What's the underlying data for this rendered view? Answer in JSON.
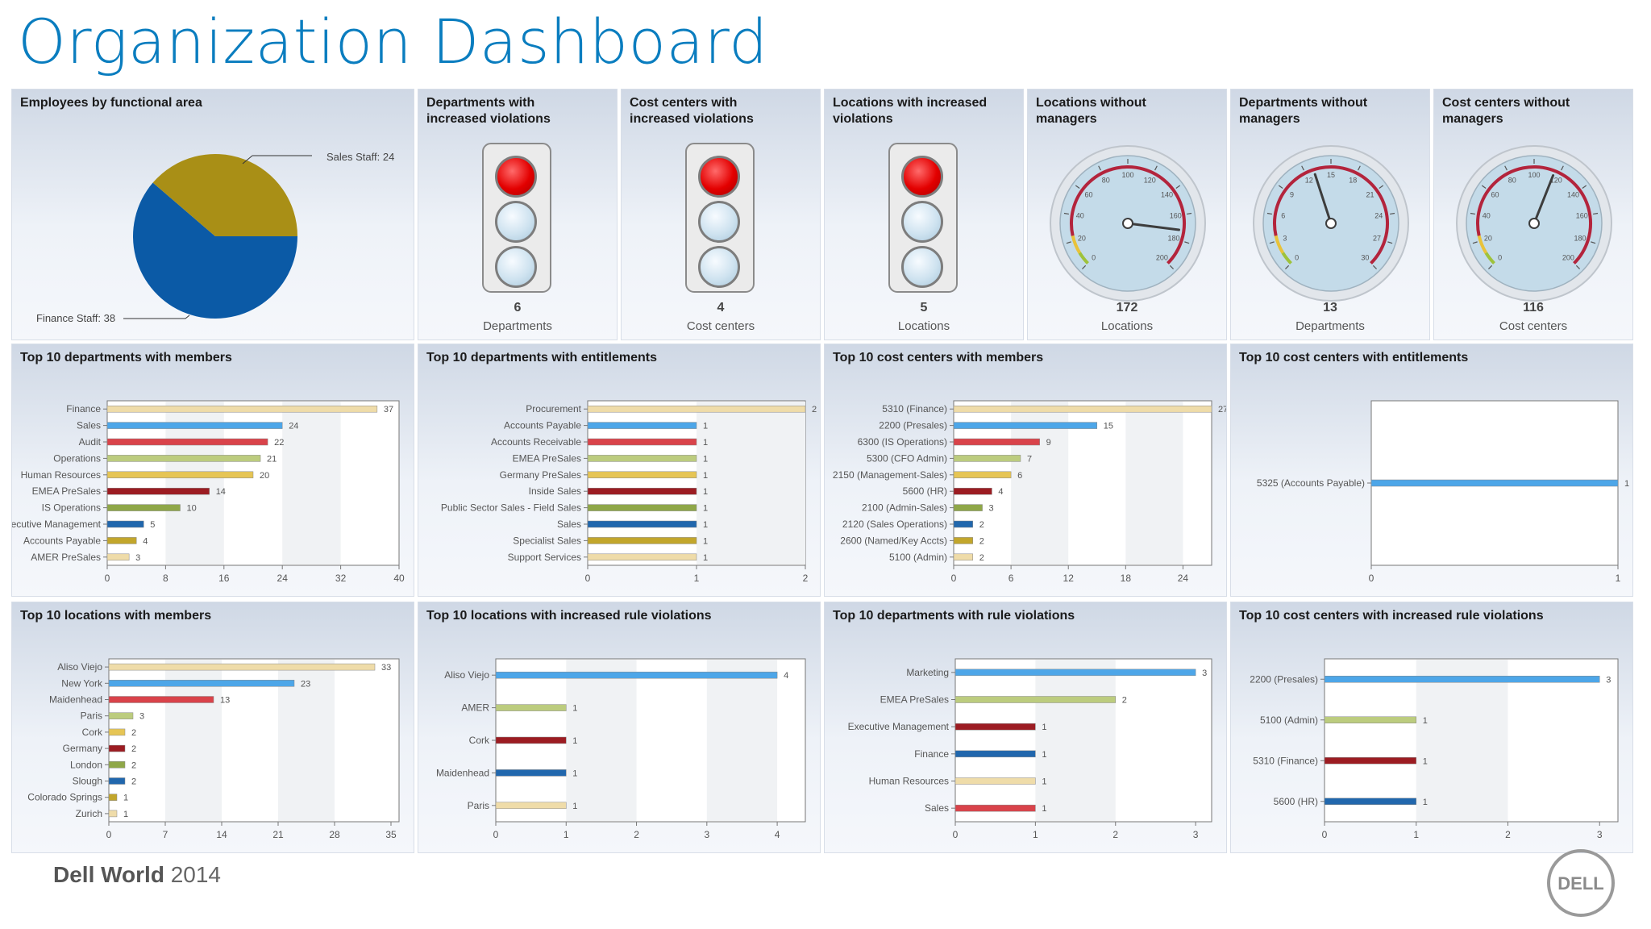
{
  "page": {
    "title": "Organization Dashboard"
  },
  "footer": {
    "brand": "Dell World",
    "year": "2014",
    "logo": "DELL"
  },
  "colors": {
    "accent": "#0a7dbf",
    "pie_finance": "#0b5aa6",
    "pie_sales": "#a98f16",
    "bar_palette": [
      "#efdca9",
      "#4da6e8",
      "#d9434a",
      "#bccc7e",
      "#e6c555",
      "#9c1c22",
      "#8fa748",
      "#2167ad",
      "#c2a62c"
    ]
  },
  "panels": {
    "employees": {
      "title": "Employees by functional area",
      "finance_label": "Finance Staff: 38",
      "sales_label": "Sales Staff: 24"
    },
    "dept_violations": {
      "title": "Departments with\nincreased violations",
      "value": "6",
      "unit": "Departments"
    },
    "cc_violations": {
      "title": "Cost centers with\nincreased violations",
      "value": "4",
      "unit": "Cost centers"
    },
    "loc_violations": {
      "title": "Locations with increased\nviolations",
      "value": "5",
      "unit": "Locations"
    },
    "loc_no_mgr": {
      "title": "Locations without\nmanagers",
      "value": "172",
      "unit": "Locations"
    },
    "dept_no_mgr": {
      "title": "Departments without\nmanagers",
      "value": "13",
      "unit": "Departments"
    },
    "cc_no_mgr": {
      "title": "Cost centers without\nmanagers",
      "value": "116",
      "unit": "Cost centers"
    },
    "top_dept_members": {
      "title": "Top 10 departments with members"
    },
    "top_dept_entitlements": {
      "title": "Top 10 departments with entitlements"
    },
    "top_cc_members": {
      "title": "Top 10 cost centers with members"
    },
    "top_cc_entitlements": {
      "title": "Top 10 cost centers with entitlements"
    },
    "top_loc_members": {
      "title": "Top 10 locations with members"
    },
    "top_loc_violations": {
      "title": "Top 10 locations with increased rule violations"
    },
    "top_dept_violations": {
      "title": "Top 10 departments with rule violations"
    },
    "top_cc_violations": {
      "title": "Top 10 cost centers with increased rule violations"
    }
  },
  "chart_data": [
    {
      "id": "employees",
      "type": "pie",
      "categories": [
        "Finance Staff",
        "Sales Staff"
      ],
      "values": [
        38,
        24
      ]
    },
    {
      "id": "loc_no_mgr",
      "type": "gauge",
      "value": 172,
      "ticks": [
        "0",
        "20",
        "40",
        "60",
        "80",
        "100",
        "120",
        "140",
        "160",
        "180",
        "200"
      ],
      "range": [
        0,
        200
      ]
    },
    {
      "id": "dept_no_mgr",
      "type": "gauge",
      "value": 13,
      "ticks": [
        "0",
        "3",
        "6",
        "9",
        "12",
        "15",
        "18",
        "21",
        "24",
        "27",
        "30"
      ],
      "range": [
        0,
        30
      ]
    },
    {
      "id": "cc_no_mgr",
      "type": "gauge",
      "value": 116,
      "ticks": [
        "0",
        "20",
        "40",
        "60",
        "80",
        "100",
        "120",
        "140",
        "160",
        "180",
        "200"
      ],
      "range": [
        0,
        200
      ]
    },
    {
      "id": "top_dept_members",
      "type": "bar",
      "categories": [
        "Finance",
        "Sales",
        "Audit",
        "Operations",
        "Human Resources",
        "EMEA PreSales",
        "IS Operations",
        "Executive Management",
        "Accounts Payable",
        "AMER PreSales"
      ],
      "values": [
        37,
        24,
        22,
        21,
        20,
        14,
        10,
        5,
        4,
        3
      ],
      "xticks": [
        0,
        8,
        16,
        24,
        32,
        40
      ],
      "xlim": [
        0,
        40
      ]
    },
    {
      "id": "top_dept_entitlements",
      "type": "bar",
      "categories": [
        "Procurement",
        "Accounts Payable",
        "Accounts Receivable",
        "EMEA PreSales",
        "Germany PreSales",
        "Inside Sales",
        "Public Sector Sales - Field Sales",
        "Sales",
        "Specialist Sales",
        "Support Services"
      ],
      "values": [
        2,
        1,
        1,
        1,
        1,
        1,
        1,
        1,
        1,
        1
      ],
      "xticks": [
        0,
        1,
        2
      ],
      "xlim": [
        0,
        2
      ]
    },
    {
      "id": "top_cc_members",
      "type": "bar",
      "categories": [
        "5310 (Finance)",
        "2200 (Presales)",
        "6300 (IS Operations)",
        "5300 (CFO Admin)",
        "2150 (Management-Sales)",
        "5600 (HR)",
        "2100 (Admin-Sales)",
        "2120 (Sales Operations)",
        "2600 (Named/Key Accts)",
        "5100 (Admin)"
      ],
      "values": [
        27,
        15,
        9,
        7,
        6,
        4,
        3,
        2,
        2,
        2
      ],
      "xticks": [
        0,
        6,
        12,
        18,
        24
      ],
      "xlim": [
        0,
        27
      ]
    },
    {
      "id": "top_cc_entitlements",
      "type": "bar",
      "categories": [
        "5325 (Accounts Payable)"
      ],
      "values": [
        1
      ],
      "xticks": [
        0,
        1
      ],
      "xlim": [
        0,
        1
      ]
    },
    {
      "id": "top_loc_members",
      "type": "bar",
      "categories": [
        "Aliso Viejo",
        "New York",
        "Maidenhead",
        "Paris",
        "Cork",
        "Germany",
        "London",
        "Slough",
        "Colorado Springs",
        "Zurich"
      ],
      "values": [
        33,
        23,
        13,
        3,
        2,
        2,
        2,
        2,
        1,
        1
      ],
      "xticks": [
        0,
        7,
        14,
        21,
        28,
        35
      ],
      "xlim": [
        0,
        36
      ]
    },
    {
      "id": "top_loc_violations",
      "type": "bar",
      "categories": [
        "Aliso Viejo",
        "AMER",
        "Cork",
        "Maidenhead",
        "Paris"
      ],
      "values": [
        4,
        1,
        1,
        1,
        1
      ],
      "xticks": [
        0,
        1,
        2,
        3,
        4
      ],
      "xlim": [
        0,
        4.4
      ]
    },
    {
      "id": "top_dept_violations",
      "type": "bar",
      "categories": [
        "Marketing",
        "EMEA PreSales",
        "Executive Management",
        "Finance",
        "Human Resources",
        "Sales"
      ],
      "values": [
        3,
        2,
        1,
        1,
        1,
        1
      ],
      "xticks": [
        0,
        1,
        2,
        3
      ],
      "xlim": [
        0,
        3.2
      ]
    },
    {
      "id": "top_cc_violations",
      "type": "bar",
      "categories": [
        "2200 (Presales)",
        "5100 (Admin)",
        "5310 (Finance)",
        "5600 (HR)"
      ],
      "values": [
        3,
        1,
        1,
        1
      ],
      "xticks": [
        0,
        1,
        2,
        3
      ],
      "xlim": [
        0,
        3.2
      ]
    }
  ]
}
